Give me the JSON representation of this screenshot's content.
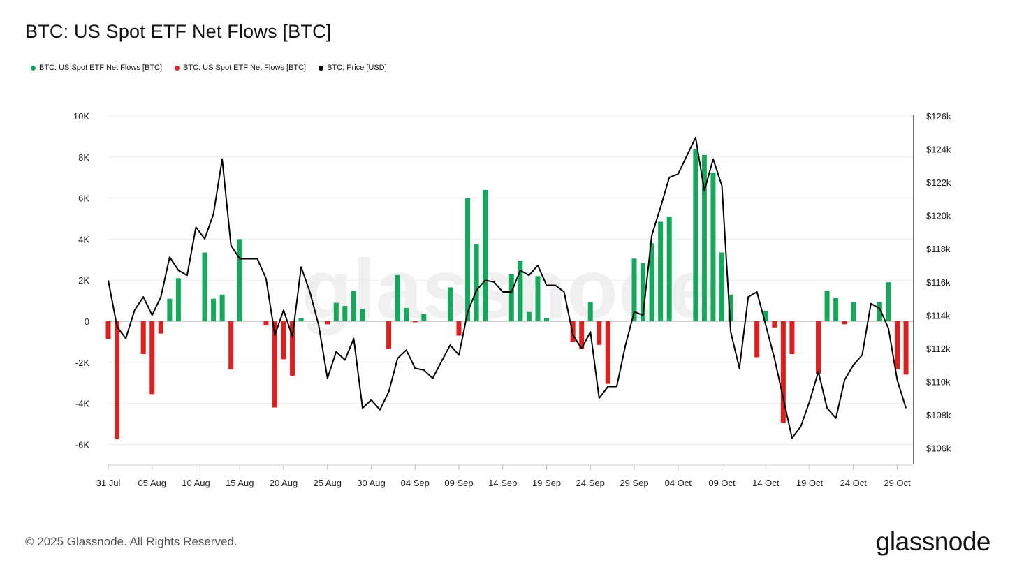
{
  "title": "BTC: US Spot ETF Net Flows [BTC]",
  "legend": [
    {
      "label": "BTC: US Spot ETF Net Flows [BTC]",
      "color": "#14a85a"
    },
    {
      "label": "BTC: US Spot ETF Net Flows [BTC]",
      "color": "#e01e1e"
    },
    {
      "label": "BTC: Price [USD]",
      "color": "#000000"
    }
  ],
  "watermark": "glassnode",
  "footer": {
    "copyright": "© 2025 Glassnode. All Rights Reserved.",
    "brand": "glassnode"
  },
  "colors": {
    "positive": "#14a85a",
    "negative": "#e01e1e",
    "price": "#000000"
  },
  "chart_data": {
    "type": "bar",
    "title": "BTC: US Spot ETF Net Flows [BTC]",
    "start_date": "2025-07-31",
    "y_left": {
      "min": -7000,
      "max": 10000,
      "ticks": [
        -6000,
        -4000,
        -2000,
        0,
        2000,
        4000,
        6000,
        8000,
        10000
      ],
      "tick_labels": [
        "-6K",
        "-4K",
        "-2K",
        "0",
        "2K",
        "4K",
        "6K",
        "8K",
        "10K"
      ]
    },
    "y_right": {
      "min": 105000,
      "max": 126000,
      "ticks": [
        106000,
        108000,
        110000,
        112000,
        114000,
        116000,
        118000,
        120000,
        122000,
        124000,
        126000
      ],
      "tick_labels": [
        "$106k",
        "$108k",
        "$110k",
        "$112k",
        "$114k",
        "$116k",
        "$118k",
        "$120k",
        "$122k",
        "$124k",
        "$126k"
      ]
    },
    "x_ticks": [
      {
        "day": 0,
        "label": "31 Jul"
      },
      {
        "day": 5,
        "label": "05 Aug"
      },
      {
        "day": 10,
        "label": "10 Aug"
      },
      {
        "day": 15,
        "label": "15 Aug"
      },
      {
        "day": 20,
        "label": "20 Aug"
      },
      {
        "day": 25,
        "label": "25 Aug"
      },
      {
        "day": 30,
        "label": "30 Aug"
      },
      {
        "day": 35,
        "label": "04 Sep"
      },
      {
        "day": 40,
        "label": "09 Sep"
      },
      {
        "day": 45,
        "label": "14 Sep"
      },
      {
        "day": 50,
        "label": "19 Sep"
      },
      {
        "day": 55,
        "label": "24 Sep"
      },
      {
        "day": 60,
        "label": "29 Sep"
      },
      {
        "day": 65,
        "label": "04 Oct"
      },
      {
        "day": 70,
        "label": "09 Oct"
      },
      {
        "day": 75,
        "label": "14 Oct"
      },
      {
        "day": 80,
        "label": "19 Oct"
      },
      {
        "day": 85,
        "label": "24 Oct"
      },
      {
        "day": 90,
        "label": "29 Oct"
      }
    ],
    "flows": [
      {
        "day": 0,
        "v": -850
      },
      {
        "day": 1,
        "v": -5750
      },
      {
        "day": 4,
        "v": -1600
      },
      {
        "day": 5,
        "v": -3550
      },
      {
        "day": 6,
        "v": -600
      },
      {
        "day": 7,
        "v": 1100
      },
      {
        "day": 8,
        "v": 2100
      },
      {
        "day": 11,
        "v": 3350
      },
      {
        "day": 12,
        "v": 1100
      },
      {
        "day": 13,
        "v": 1300
      },
      {
        "day": 14,
        "v": -2350
      },
      {
        "day": 15,
        "v": 4000
      },
      {
        "day": 18,
        "v": -200
      },
      {
        "day": 19,
        "v": -4200
      },
      {
        "day": 20,
        "v": -1850
      },
      {
        "day": 21,
        "v": -2650
      },
      {
        "day": 22,
        "v": 150
      },
      {
        "day": 25,
        "v": -150
      },
      {
        "day": 26,
        "v": 900
      },
      {
        "day": 27,
        "v": 750
      },
      {
        "day": 28,
        "v": 1500
      },
      {
        "day": 29,
        "v": 600
      },
      {
        "day": 32,
        "v": -1350
      },
      {
        "day": 33,
        "v": 2250
      },
      {
        "day": 34,
        "v": 650
      },
      {
        "day": 35,
        "v": -50
      },
      {
        "day": 36,
        "v": 350
      },
      {
        "day": 39,
        "v": 1650
      },
      {
        "day": 40,
        "v": -700
      },
      {
        "day": 41,
        "v": 6000
      },
      {
        "day": 42,
        "v": 3750
      },
      {
        "day": 43,
        "v": 6400
      },
      {
        "day": 46,
        "v": 2300
      },
      {
        "day": 47,
        "v": 2950
      },
      {
        "day": 48,
        "v": 450
      },
      {
        "day": 49,
        "v": 2200
      },
      {
        "day": 50,
        "v": 150
      },
      {
        "day": 53,
        "v": -1000
      },
      {
        "day": 54,
        "v": -1350
      },
      {
        "day": 55,
        "v": 950
      },
      {
        "day": 56,
        "v": -1150
      },
      {
        "day": 57,
        "v": -3050
      },
      {
        "day": 60,
        "v": 3050
      },
      {
        "day": 61,
        "v": 2850
      },
      {
        "day": 62,
        "v": 3800
      },
      {
        "day": 63,
        "v": 4850
      },
      {
        "day": 64,
        "v": 5100
      },
      {
        "day": 67,
        "v": 8400
      },
      {
        "day": 68,
        "v": 8100
      },
      {
        "day": 69,
        "v": 7250
      },
      {
        "day": 70,
        "v": 3350
      },
      {
        "day": 71,
        "v": 1300
      },
      {
        "day": 74,
        "v": -1750
      },
      {
        "day": 75,
        "v": 500
      },
      {
        "day": 76,
        "v": -300
      },
      {
        "day": 77,
        "v": -4950
      },
      {
        "day": 78,
        "v": -1600
      },
      {
        "day": 81,
        "v": -2550
      },
      {
        "day": 82,
        "v": 1500
      },
      {
        "day": 83,
        "v": 1150
      },
      {
        "day": 84,
        "v": -150
      },
      {
        "day": 85,
        "v": 950
      },
      {
        "day": 88,
        "v": 950
      },
      {
        "day": 89,
        "v": 1900
      },
      {
        "day": 90,
        "v": -2350
      },
      {
        "day": 91,
        "v": -2600
      }
    ],
    "price": [
      [
        0,
        116100
      ],
      [
        1,
        113300
      ],
      [
        2,
        112600
      ],
      [
        3,
        114300
      ],
      [
        4,
        115100
      ],
      [
        5,
        114000
      ],
      [
        6,
        115100
      ],
      [
        7,
        117500
      ],
      [
        8,
        116700
      ],
      [
        9,
        116400
      ],
      [
        10,
        119300
      ],
      [
        11,
        118600
      ],
      [
        12,
        120100
      ],
      [
        13,
        123400
      ],
      [
        14,
        118200
      ],
      [
        15,
        117400
      ],
      [
        16,
        117400
      ],
      [
        17,
        117400
      ],
      [
        18,
        116200
      ],
      [
        19,
        112800
      ],
      [
        20,
        114300
      ],
      [
        21,
        112700
      ],
      [
        22,
        116900
      ],
      [
        23,
        115400
      ],
      [
        24,
        113400
      ],
      [
        25,
        110200
      ],
      [
        26,
        111800
      ],
      [
        27,
        111300
      ],
      [
        28,
        112600
      ],
      [
        29,
        108400
      ],
      [
        30,
        108900
      ],
      [
        31,
        108300
      ],
      [
        32,
        109400
      ],
      [
        33,
        111400
      ],
      [
        34,
        111900
      ],
      [
        35,
        110800
      ],
      [
        36,
        110700
      ],
      [
        37,
        110200
      ],
      [
        38,
        111200
      ],
      [
        39,
        112200
      ],
      [
        40,
        111600
      ],
      [
        41,
        114200
      ],
      [
        42,
        115500
      ],
      [
        43,
        116100
      ],
      [
        44,
        116000
      ],
      [
        45,
        115400
      ],
      [
        46,
        115400
      ],
      [
        47,
        116700
      ],
      [
        48,
        116400
      ],
      [
        49,
        117000
      ],
      [
        50,
        115800
      ],
      [
        51,
        115800
      ],
      [
        52,
        115400
      ],
      [
        53,
        112800
      ],
      [
        54,
        112000
      ],
      [
        55,
        113000
      ],
      [
        56,
        109000
      ],
      [
        57,
        109700
      ],
      [
        58,
        109700
      ],
      [
        59,
        112200
      ],
      [
        60,
        114200
      ],
      [
        61,
        114000
      ],
      [
        62,
        118800
      ],
      [
        63,
        120500
      ],
      [
        64,
        122300
      ],
      [
        65,
        122500
      ],
      [
        66,
        123600
      ],
      [
        67,
        124700
      ],
      [
        68,
        121500
      ],
      [
        69,
        123400
      ],
      [
        70,
        121800
      ],
      [
        71,
        113000
      ],
      [
        72,
        110800
      ],
      [
        73,
        115100
      ],
      [
        74,
        115400
      ],
      [
        75,
        113400
      ],
      [
        76,
        111400
      ],
      [
        77,
        109000
      ],
      [
        78,
        106600
      ],
      [
        79,
        107300
      ],
      [
        80,
        108800
      ],
      [
        81,
        110600
      ],
      [
        82,
        108400
      ],
      [
        83,
        107800
      ],
      [
        84,
        110100
      ],
      [
        85,
        111000
      ],
      [
        86,
        111600
      ],
      [
        87,
        114700
      ],
      [
        88,
        114400
      ],
      [
        89,
        113200
      ],
      [
        90,
        110100
      ],
      [
        91,
        108400
      ]
    ]
  }
}
